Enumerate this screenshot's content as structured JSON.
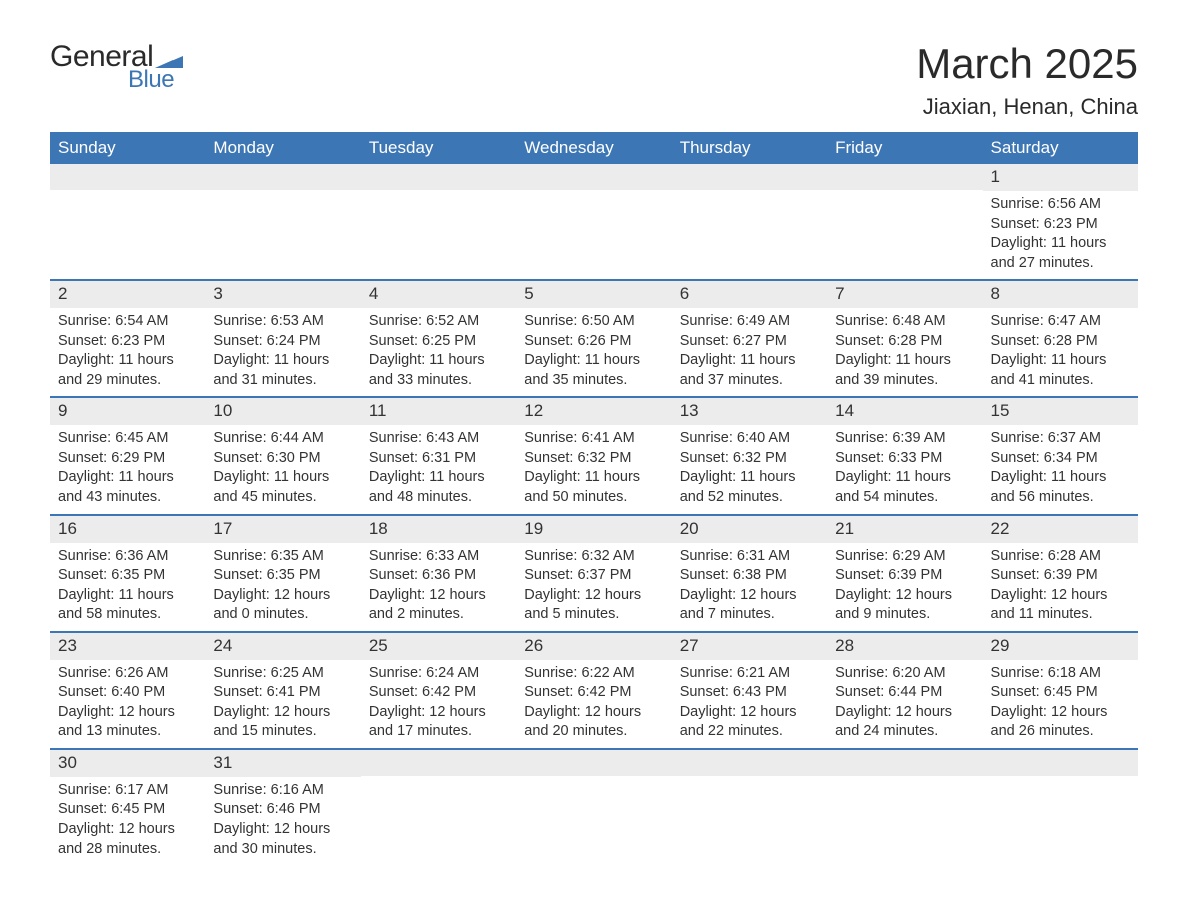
{
  "brand": {
    "text_general": "General",
    "text_blue": "Blue",
    "flag_color": "#3d76b4"
  },
  "header": {
    "month_title": "March 2025",
    "location": "Jiaxian, Henan, China"
  },
  "style": {
    "header_bg": "#3d76b4",
    "header_fg": "#ffffff",
    "band_bg": "#ececec",
    "row_border": "#3d76b4",
    "body_bg": "#ffffff",
    "text_color": "#333333",
    "title_fontsize_pt": 32,
    "location_fontsize_pt": 17,
    "weekday_fontsize_pt": 13,
    "daynum_fontsize_pt": 13,
    "body_fontsize_pt": 11
  },
  "weekdays": [
    "Sunday",
    "Monday",
    "Tuesday",
    "Wednesday",
    "Thursday",
    "Friday",
    "Saturday"
  ],
  "weeks": [
    [
      {
        "day": "",
        "sunrise": "",
        "sunset": "",
        "daylight1": "",
        "daylight2": ""
      },
      {
        "day": "",
        "sunrise": "",
        "sunset": "",
        "daylight1": "",
        "daylight2": ""
      },
      {
        "day": "",
        "sunrise": "",
        "sunset": "",
        "daylight1": "",
        "daylight2": ""
      },
      {
        "day": "",
        "sunrise": "",
        "sunset": "",
        "daylight1": "",
        "daylight2": ""
      },
      {
        "day": "",
        "sunrise": "",
        "sunset": "",
        "daylight1": "",
        "daylight2": ""
      },
      {
        "day": "",
        "sunrise": "",
        "sunset": "",
        "daylight1": "",
        "daylight2": ""
      },
      {
        "day": "1",
        "sunrise": "Sunrise: 6:56 AM",
        "sunset": "Sunset: 6:23 PM",
        "daylight1": "Daylight: 11 hours",
        "daylight2": "and 27 minutes."
      }
    ],
    [
      {
        "day": "2",
        "sunrise": "Sunrise: 6:54 AM",
        "sunset": "Sunset: 6:23 PM",
        "daylight1": "Daylight: 11 hours",
        "daylight2": "and 29 minutes."
      },
      {
        "day": "3",
        "sunrise": "Sunrise: 6:53 AM",
        "sunset": "Sunset: 6:24 PM",
        "daylight1": "Daylight: 11 hours",
        "daylight2": "and 31 minutes."
      },
      {
        "day": "4",
        "sunrise": "Sunrise: 6:52 AM",
        "sunset": "Sunset: 6:25 PM",
        "daylight1": "Daylight: 11 hours",
        "daylight2": "and 33 minutes."
      },
      {
        "day": "5",
        "sunrise": "Sunrise: 6:50 AM",
        "sunset": "Sunset: 6:26 PM",
        "daylight1": "Daylight: 11 hours",
        "daylight2": "and 35 minutes."
      },
      {
        "day": "6",
        "sunrise": "Sunrise: 6:49 AM",
        "sunset": "Sunset: 6:27 PM",
        "daylight1": "Daylight: 11 hours",
        "daylight2": "and 37 minutes."
      },
      {
        "day": "7",
        "sunrise": "Sunrise: 6:48 AM",
        "sunset": "Sunset: 6:28 PM",
        "daylight1": "Daylight: 11 hours",
        "daylight2": "and 39 minutes."
      },
      {
        "day": "8",
        "sunrise": "Sunrise: 6:47 AM",
        "sunset": "Sunset: 6:28 PM",
        "daylight1": "Daylight: 11 hours",
        "daylight2": "and 41 minutes."
      }
    ],
    [
      {
        "day": "9",
        "sunrise": "Sunrise: 6:45 AM",
        "sunset": "Sunset: 6:29 PM",
        "daylight1": "Daylight: 11 hours",
        "daylight2": "and 43 minutes."
      },
      {
        "day": "10",
        "sunrise": "Sunrise: 6:44 AM",
        "sunset": "Sunset: 6:30 PM",
        "daylight1": "Daylight: 11 hours",
        "daylight2": "and 45 minutes."
      },
      {
        "day": "11",
        "sunrise": "Sunrise: 6:43 AM",
        "sunset": "Sunset: 6:31 PM",
        "daylight1": "Daylight: 11 hours",
        "daylight2": "and 48 minutes."
      },
      {
        "day": "12",
        "sunrise": "Sunrise: 6:41 AM",
        "sunset": "Sunset: 6:32 PM",
        "daylight1": "Daylight: 11 hours",
        "daylight2": "and 50 minutes."
      },
      {
        "day": "13",
        "sunrise": "Sunrise: 6:40 AM",
        "sunset": "Sunset: 6:32 PM",
        "daylight1": "Daylight: 11 hours",
        "daylight2": "and 52 minutes."
      },
      {
        "day": "14",
        "sunrise": "Sunrise: 6:39 AM",
        "sunset": "Sunset: 6:33 PM",
        "daylight1": "Daylight: 11 hours",
        "daylight2": "and 54 minutes."
      },
      {
        "day": "15",
        "sunrise": "Sunrise: 6:37 AM",
        "sunset": "Sunset: 6:34 PM",
        "daylight1": "Daylight: 11 hours",
        "daylight2": "and 56 minutes."
      }
    ],
    [
      {
        "day": "16",
        "sunrise": "Sunrise: 6:36 AM",
        "sunset": "Sunset: 6:35 PM",
        "daylight1": "Daylight: 11 hours",
        "daylight2": "and 58 minutes."
      },
      {
        "day": "17",
        "sunrise": "Sunrise: 6:35 AM",
        "sunset": "Sunset: 6:35 PM",
        "daylight1": "Daylight: 12 hours",
        "daylight2": "and 0 minutes."
      },
      {
        "day": "18",
        "sunrise": "Sunrise: 6:33 AM",
        "sunset": "Sunset: 6:36 PM",
        "daylight1": "Daylight: 12 hours",
        "daylight2": "and 2 minutes."
      },
      {
        "day": "19",
        "sunrise": "Sunrise: 6:32 AM",
        "sunset": "Sunset: 6:37 PM",
        "daylight1": "Daylight: 12 hours",
        "daylight2": "and 5 minutes."
      },
      {
        "day": "20",
        "sunrise": "Sunrise: 6:31 AM",
        "sunset": "Sunset: 6:38 PM",
        "daylight1": "Daylight: 12 hours",
        "daylight2": "and 7 minutes."
      },
      {
        "day": "21",
        "sunrise": "Sunrise: 6:29 AM",
        "sunset": "Sunset: 6:39 PM",
        "daylight1": "Daylight: 12 hours",
        "daylight2": "and 9 minutes."
      },
      {
        "day": "22",
        "sunrise": "Sunrise: 6:28 AM",
        "sunset": "Sunset: 6:39 PM",
        "daylight1": "Daylight: 12 hours",
        "daylight2": "and 11 minutes."
      }
    ],
    [
      {
        "day": "23",
        "sunrise": "Sunrise: 6:26 AM",
        "sunset": "Sunset: 6:40 PM",
        "daylight1": "Daylight: 12 hours",
        "daylight2": "and 13 minutes."
      },
      {
        "day": "24",
        "sunrise": "Sunrise: 6:25 AM",
        "sunset": "Sunset: 6:41 PM",
        "daylight1": "Daylight: 12 hours",
        "daylight2": "and 15 minutes."
      },
      {
        "day": "25",
        "sunrise": "Sunrise: 6:24 AM",
        "sunset": "Sunset: 6:42 PM",
        "daylight1": "Daylight: 12 hours",
        "daylight2": "and 17 minutes."
      },
      {
        "day": "26",
        "sunrise": "Sunrise: 6:22 AM",
        "sunset": "Sunset: 6:42 PM",
        "daylight1": "Daylight: 12 hours",
        "daylight2": "and 20 minutes."
      },
      {
        "day": "27",
        "sunrise": "Sunrise: 6:21 AM",
        "sunset": "Sunset: 6:43 PM",
        "daylight1": "Daylight: 12 hours",
        "daylight2": "and 22 minutes."
      },
      {
        "day": "28",
        "sunrise": "Sunrise: 6:20 AM",
        "sunset": "Sunset: 6:44 PM",
        "daylight1": "Daylight: 12 hours",
        "daylight2": "and 24 minutes."
      },
      {
        "day": "29",
        "sunrise": "Sunrise: 6:18 AM",
        "sunset": "Sunset: 6:45 PM",
        "daylight1": "Daylight: 12 hours",
        "daylight2": "and 26 minutes."
      }
    ],
    [
      {
        "day": "30",
        "sunrise": "Sunrise: 6:17 AM",
        "sunset": "Sunset: 6:45 PM",
        "daylight1": "Daylight: 12 hours",
        "daylight2": "and 28 minutes."
      },
      {
        "day": "31",
        "sunrise": "Sunrise: 6:16 AM",
        "sunset": "Sunset: 6:46 PM",
        "daylight1": "Daylight: 12 hours",
        "daylight2": "and 30 minutes."
      },
      {
        "day": "",
        "sunrise": "",
        "sunset": "",
        "daylight1": "",
        "daylight2": ""
      },
      {
        "day": "",
        "sunrise": "",
        "sunset": "",
        "daylight1": "",
        "daylight2": ""
      },
      {
        "day": "",
        "sunrise": "",
        "sunset": "",
        "daylight1": "",
        "daylight2": ""
      },
      {
        "day": "",
        "sunrise": "",
        "sunset": "",
        "daylight1": "",
        "daylight2": ""
      },
      {
        "day": "",
        "sunrise": "",
        "sunset": "",
        "daylight1": "",
        "daylight2": ""
      }
    ]
  ]
}
